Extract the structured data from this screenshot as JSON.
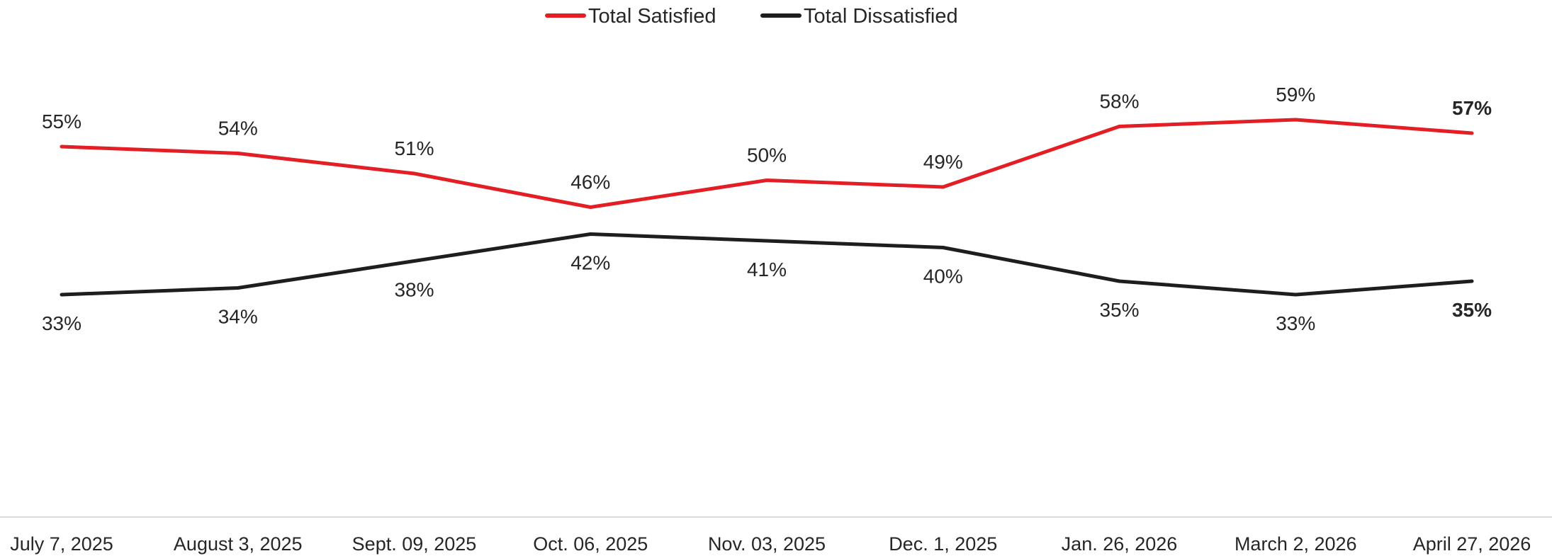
{
  "chart_data": {
    "type": "line",
    "title": "",
    "xlabel": "",
    "ylabel": "",
    "ylim": [
      0,
      60
    ],
    "grid": false,
    "legend_position": "top-center",
    "categories": [
      "July 7, 2025",
      "August 3, 2025",
      "Sept. 09, 2025",
      "Oct. 06, 2025",
      "Nov. 03, 2025",
      "Dec. 1, 2025",
      "Jan. 26, 2026",
      "March 2, 2026",
      "April 27, 2026"
    ],
    "series": [
      {
        "name": "Total Satisfied",
        "color": "#e31e24",
        "values": [
          55,
          54,
          51,
          46,
          50,
          49,
          58,
          59,
          57
        ],
        "labels": [
          "55%",
          "54%",
          "51%",
          "46%",
          "50%",
          "49%",
          "58%",
          "59%",
          "57%"
        ],
        "label_position": "above"
      },
      {
        "name": "Total Dissatisfied",
        "color": "#1e1e1e",
        "values": [
          33,
          34,
          38,
          42,
          41,
          40,
          35,
          33,
          35
        ],
        "labels": [
          "33%",
          "34%",
          "38%",
          "42%",
          "41%",
          "40%",
          "35%",
          "33%",
          "35%"
        ],
        "label_position": "below"
      }
    ],
    "emphasize_last_label": true,
    "axis_color": "#d9d9d9"
  }
}
